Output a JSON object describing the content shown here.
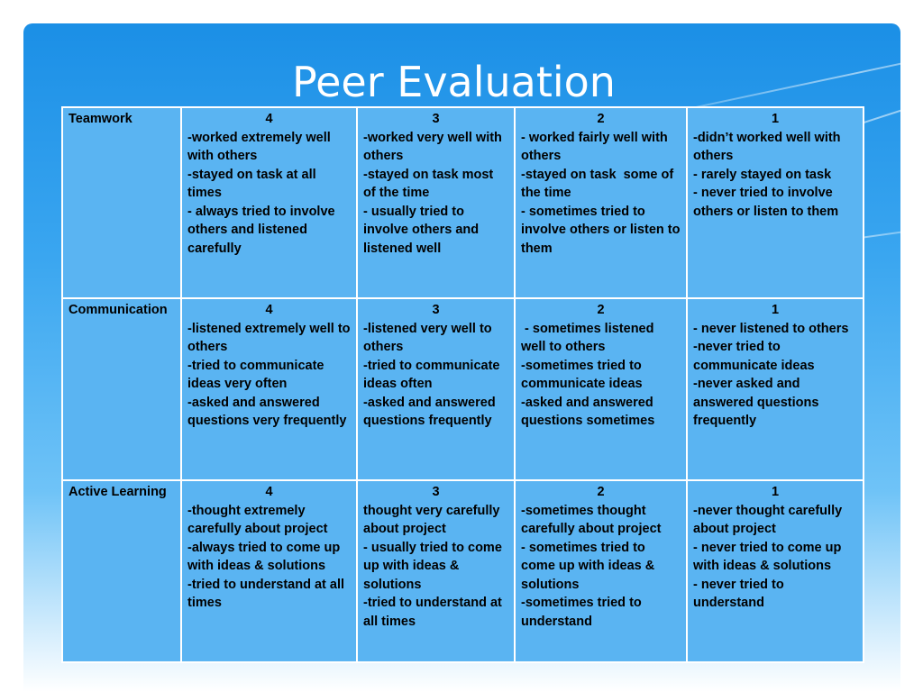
{
  "title": "Peer Evaluation",
  "rows": [
    {
      "category": "Teamwork",
      "cells": [
        {
          "score": "4",
          "lines": [
            "-worked extremely well with others",
            "-stayed on task at all times",
            "- always tried to involve others and listened carefully"
          ]
        },
        {
          "score": "3",
          "lines": [
            "-worked very well with others",
            "-stayed on task most of the time",
            "- usually tried to involve others and listened well"
          ]
        },
        {
          "score": "2",
          "lines": [
            "- worked fairly well with others",
            "-stayed on task  some of the time",
            "- sometimes tried to involve others or listen to them"
          ]
        },
        {
          "score": "1",
          "lines": [
            "-didn’t worked well with others",
            "- rarely stayed on task",
            "- never tried to involve others or listen to them"
          ]
        }
      ]
    },
    {
      "category": "Communication",
      "cells": [
        {
          "score": "4",
          "lines": [
            "-listened extremely well to others",
            "-tried to communicate ideas very often",
            "-asked and answered questions very frequently"
          ]
        },
        {
          "score": "3",
          "lines": [
            "-listened very well to others",
            "-tried to communicate ideas often",
            "-asked and answered questions frequently"
          ]
        },
        {
          "score": "2",
          "lines": [
            " - sometimes listened well to others",
            "-sometimes tried to communicate ideas",
            "-asked and answered questions sometimes"
          ]
        },
        {
          "score": "1",
          "lines": [
            "- never listened to others",
            "-never tried to communicate ideas",
            "-never asked and answered questions frequently"
          ]
        }
      ]
    },
    {
      "category": "Active Learning",
      "cells": [
        {
          "score": "4",
          "lines": [
            "-thought extremely carefully about project",
            "-always tried to come up with ideas & solutions",
            "-tried to understand at all times"
          ]
        },
        {
          "score": "3",
          "lines": [
            "thought very carefully about project",
            "- usually tried to come up with ideas & solutions",
            "-tried to understand at all times"
          ]
        },
        {
          "score": "2",
          "lines": [
            "-sometimes thought carefully about project",
            "- sometimes tried to come up with ideas & solutions",
            "-sometimes tried to understand"
          ]
        },
        {
          "score": "1",
          "lines": [
            "-never thought carefully about project",
            "- never tried to come up with ideas & solutions",
            "- never tried to understand"
          ]
        }
      ]
    }
  ]
}
